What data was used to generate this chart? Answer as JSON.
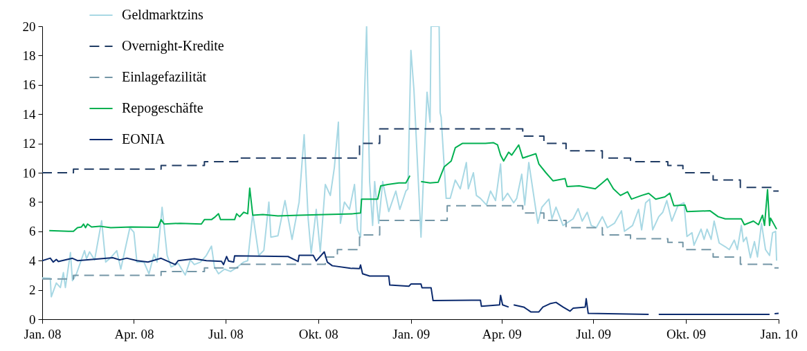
{
  "chart_data": {
    "type": "line",
    "legend": "top left",
    "xlim": [
      "2008-01-01",
      "2010-01-01"
    ],
    "ylim": [
      0,
      20
    ],
    "yticks": [
      0,
      2,
      4,
      6,
      8,
      10,
      12,
      14,
      16,
      18,
      20
    ],
    "xticks": [
      {
        "value": "2008-01-01",
        "label": "Jan. 08"
      },
      {
        "value": "2008-04-01",
        "label": "Apr. 08"
      },
      {
        "value": "2008-07-01",
        "label": "Jul. 08"
      },
      {
        "value": "2008-10-01",
        "label": "Okt. 08"
      },
      {
        "value": "2009-01-01",
        "label": "Jan. 09"
      },
      {
        "value": "2009-04-01",
        "label": "Apr. 09"
      },
      {
        "value": "2009-07-01",
        "label": "Jul. 09"
      },
      {
        "value": "2009-10-01",
        "label": "Okt. 09"
      },
      {
        "value": "2010-01-01",
        "label": "Jan. 10"
      }
    ],
    "series": [
      {
        "name": "Geldmarktzins",
        "line_style": "solid",
        "color": "#a8d8e4",
        "x": [
          "2008-01-01",
          "2008-01-09",
          "2008-01-10",
          "2008-01-15",
          "2008-01-19",
          "2008-01-22",
          "2008-01-24",
          "2008-01-29",
          "2008-01-31",
          "2008-02-04",
          "2008-02-12",
          "2008-02-14",
          "2008-02-17",
          "2008-02-22",
          "2008-02-29",
          "2008-03-04",
          "2008-03-09",
          "2008-03-15",
          "2008-03-19",
          "2008-03-28",
          "2008-04-01",
          "2008-04-04",
          "2008-04-11",
          "2008-04-16",
          "2008-04-21",
          "2008-04-24",
          "2008-04-29",
          "2008-05-04",
          "2008-05-08",
          "2008-05-15",
          "2008-05-22",
          "2008-05-27",
          "2008-05-31",
          "2008-06-06",
          "2008-06-12",
          "2008-06-17",
          "2008-06-20",
          "2008-06-24",
          "2008-06-30",
          "2008-07-06",
          "2008-07-13",
          "2008-07-19",
          "2008-07-23",
          "2008-07-28",
          "2008-08-03",
          "2008-08-08",
          "2008-08-13",
          "2008-08-15",
          "2008-08-22",
          "2008-08-29",
          "2008-09-05",
          "2008-09-12",
          "2008-09-17",
          "2008-09-21",
          "2008-09-24",
          "2008-09-29",
          "2008-10-03",
          "2008-10-08",
          "2008-10-13",
          "2008-10-17",
          "2008-10-21",
          "2008-10-23",
          "2008-10-27",
          "2008-11-01",
          "2008-11-06",
          "2008-11-09",
          "2008-11-12",
          "2008-11-14",
          "2008-11-18",
          "2008-11-21",
          "2008-11-24",
          "2008-11-26",
          "2008-11-30",
          "2008-12-04",
          "2008-12-10",
          "2008-12-17",
          "2008-12-21",
          "2008-12-27",
          "2008-12-29",
          "2009-01-01",
          "2009-01-04",
          "2009-01-11",
          "2009-01-17",
          "2009-01-20",
          "2009-01-21",
          "2009-01-29",
          "2009-01-30",
          "2009-01-31",
          "2009-02-05",
          "2009-02-09",
          "2009-02-14",
          "2009-02-19",
          "2009-02-25",
          "2009-02-27",
          "2009-03-04",
          "2009-03-07",
          "2009-03-11",
          "2009-03-17",
          "2009-03-21",
          "2009-03-26",
          "2009-03-31",
          "2009-04-02",
          "2009-04-07",
          "2009-04-13",
          "2009-04-16",
          "2009-04-21",
          "2009-04-24",
          "2009-04-28",
          "2009-05-07",
          "2009-05-11",
          "2009-05-18",
          "2009-05-21",
          "2009-05-25",
          "2009-06-01",
          "2009-06-11",
          "2009-06-16",
          "2009-06-20",
          "2009-06-25",
          "2009-06-29",
          "2009-07-04",
          "2009-07-10",
          "2009-07-15",
          "2009-07-22",
          "2009-07-29",
          "2009-08-01",
          "2009-08-09",
          "2009-08-15",
          "2009-08-18",
          "2009-08-22",
          "2009-08-26",
          "2009-08-29",
          "2009-09-04",
          "2009-09-08",
          "2009-09-12",
          "2009-09-17",
          "2009-09-23",
          "2009-09-29",
          "2009-10-02",
          "2009-10-07",
          "2009-10-09",
          "2009-10-16",
          "2009-10-19",
          "2009-10-22",
          "2009-10-26",
          "2009-10-29",
          "2009-11-03",
          "2009-11-09",
          "2009-11-13",
          "2009-11-18",
          "2009-11-21",
          "2009-11-25",
          "2009-11-27",
          "2009-11-30",
          "2009-12-04",
          "2009-12-08",
          "2009-12-11",
          "2009-12-15",
          "2009-12-19",
          "2009-12-23",
          "2009-12-26",
          "2009-12-29",
          "2009-12-30"
        ],
        "values": [
          2.82,
          2.79,
          1.53,
          2.47,
          2.16,
          3.18,
          2.16,
          4.55,
          2.63,
          3.1,
          4.68,
          4.13,
          4.6,
          4.05,
          6.72,
          3.9,
          4.2,
          4.68,
          3.42,
          6.25,
          5.94,
          3.9,
          3.9,
          3.1,
          4.44,
          3.9,
          7.64,
          4.36,
          3.57,
          3.81,
          3.02,
          4.05,
          3.73,
          3.9,
          4.36,
          4.99,
          3.57,
          3.1,
          3.42,
          3.26,
          3.57,
          3.9,
          4.0,
          7.2,
          4.35,
          4.7,
          8.0,
          5.6,
          5.7,
          8.1,
          5.45,
          8.0,
          12.6,
          6.85,
          4.5,
          7.5,
          4.6,
          9.2,
          8.45,
          10.35,
          13.45,
          6.55,
          8.0,
          7.5,
          9.2,
          6.1,
          5.6,
          10.95,
          20,
          9.4,
          6.4,
          9.4,
          6.55,
          9.4,
          7.35,
          8.75,
          7.5,
          8.75,
          8.9,
          18.35,
          15.65,
          5.6,
          15.5,
          13.45,
          20,
          20,
          14.1,
          13.8,
          8.25,
          8.25,
          9.5,
          8.9,
          10.7,
          8.9,
          10.0,
          8.45,
          8.25,
          7.8,
          8.75,
          8.1,
          10.6,
          8.1,
          8.6,
          7.95,
          8.25,
          9.9,
          7.8,
          10.7,
          6.55,
          7.65,
          8.2,
          6.85,
          7.65,
          6.4,
          6.85,
          7.55,
          6.7,
          7.3,
          6.4,
          6.25,
          7.0,
          6.25,
          6.55,
          7.4,
          6.0,
          6.4,
          7.5,
          6.1,
          7.95,
          8.2,
          6.1,
          7.0,
          7.3,
          8.1,
          6.7,
          7.75,
          7.95,
          5.65,
          5.9,
          5.05,
          6.15,
          5.45,
          6.15,
          5.45,
          6.7,
          5.2,
          4.95,
          4.75,
          5.4,
          4.75,
          6.4,
          5.3,
          5.6,
          4.2,
          5.3,
          4.25,
          6.55,
          4.75,
          4.35,
          5.9,
          6.0,
          4.0
        ]
      },
      {
        "name": "Overnight-Kredite",
        "type": "step",
        "line_style": "dashed",
        "color": "#1f3b63",
        "x": [
          "2008-01-01",
          "2008-02-01",
          "2008-04-28",
          "2008-06-10",
          "2008-07-13",
          "2008-11-11",
          "2008-12-01",
          "2009-04-22",
          "2009-05-13",
          "2009-06-04",
          "2009-07-10",
          "2009-08-07",
          "2009-09-13",
          "2009-09-28",
          "2009-10-28",
          "2009-11-24",
          "2009-12-25",
          "2010-01-01"
        ],
        "values": [
          10,
          10.25,
          10.5,
          10.75,
          11,
          12,
          13,
          12.5,
          12,
          11.5,
          11,
          10.75,
          10.5,
          10,
          9.5,
          9,
          8.75,
          8.75
        ]
      },
      {
        "name": "Einlagefazilität",
        "type": "step",
        "line_style": "dashed",
        "color": "#7496a6",
        "x": [
          "2008-01-01",
          "2008-02-01",
          "2008-04-28",
          "2008-06-10",
          "2008-07-13",
          "2008-10-08",
          "2008-10-20",
          "2008-11-11",
          "2008-12-01",
          "2009-02-06",
          "2009-04-22",
          "2009-05-13",
          "2009-06-04",
          "2009-07-10",
          "2009-08-07",
          "2009-09-13",
          "2009-09-28",
          "2009-10-28",
          "2009-11-24",
          "2009-12-25",
          "2010-01-01"
        ],
        "values": [
          2.75,
          3.0,
          3.25,
          3.5,
          3.75,
          4.25,
          4.75,
          5.75,
          6.75,
          7.75,
          7.25,
          6.75,
          6.25,
          5.75,
          5.5,
          5.25,
          4.75,
          4.25,
          3.75,
          3.5,
          3.5
        ]
      },
      {
        "name": "Repogeschäfte",
        "line_style": "solid",
        "color": "#00b050",
        "x": [
          "2008-01-08",
          "2008-01-27",
          "2008-02-01",
          "2008-02-05",
          "2008-02-09",
          "2008-02-11",
          "2008-02-13",
          "2008-02-15",
          "2008-02-19",
          "2008-02-27",
          "2008-03-09",
          "2008-03-29",
          "2008-04-25",
          "2008-04-28",
          "2008-05-01",
          "2008-05-17",
          "2008-06-07",
          "2008-06-10",
          "2008-06-17",
          "2008-06-20",
          "2008-06-24",
          "2008-06-26",
          "2008-07-10",
          "2008-07-12",
          "2008-07-15",
          "2008-07-19",
          "2008-07-23",
          "2008-07-25",
          "2008-07-28",
          "2008-08-07",
          "2008-08-22",
          "2008-09-12",
          "2008-10-08",
          "2008-11-05",
          "2008-11-12",
          "2008-11-13",
          "2008-11-29",
          "2008-12-02",
          "2008-12-09",
          "2008-12-20",
          "2008-12-27",
          "2008-12-31",
          "2009-01-05",
          "2009-01-11",
          "2009-01-20",
          "2009-01-28",
          "2009-02-03",
          "2009-02-10",
          "2009-02-14",
          "2009-02-21",
          "2009-03-16",
          "2009-03-24",
          "2009-03-28",
          "2009-03-31",
          "2009-04-03",
          "2009-04-08",
          "2009-04-11",
          "2009-04-14",
          "2009-04-18",
          "2009-04-22",
          "2009-05-05",
          "2009-05-08",
          "2009-05-15",
          "2009-05-22",
          "2009-06-03",
          "2009-06-05",
          "2009-06-17",
          "2009-07-03",
          "2009-07-10",
          "2009-07-15",
          "2009-07-21",
          "2009-07-28",
          "2009-08-04",
          "2009-08-08",
          "2009-08-18",
          "2009-08-25",
          "2009-09-01",
          "2009-09-10",
          "2009-09-15",
          "2009-09-19",
          "2009-09-30",
          "2009-10-02",
          "2009-10-25",
          "2009-11-02",
          "2009-11-09",
          "2009-11-25",
          "2009-11-28",
          "2009-12-07",
          "2009-12-12",
          "2009-12-16",
          "2009-12-18",
          "2009-12-21",
          "2009-12-23",
          "2009-12-24",
          "2009-12-30"
        ],
        "values": [
          6.05,
          6.0,
          6.0,
          6.25,
          6.3,
          6.5,
          6.25,
          6.5,
          6.3,
          6.35,
          6.25,
          6.3,
          6.27,
          6.8,
          6.5,
          6.55,
          6.5,
          6.8,
          6.8,
          6.95,
          7.2,
          6.8,
          6.8,
          7.2,
          7.0,
          7.3,
          7.2,
          8.95,
          7.1,
          7.15,
          7.05,
          7.1,
          7.15,
          7.2,
          7.25,
          8.2,
          8.2,
          9.1,
          9.2,
          9.3,
          9.3,
          9.8,
          null,
          9.4,
          9.3,
          9.35,
          10.4,
          10.8,
          11.7,
          12.0,
          12.0,
          12.05,
          11.9,
          11.2,
          10.8,
          11.4,
          11.2,
          11.5,
          11.9,
          11.0,
          11.3,
          10.6,
          10.0,
          9.45,
          9.6,
          9.06,
          9.1,
          8.9,
          9.3,
          9.6,
          8.9,
          8.45,
          8.7,
          8.2,
          8.45,
          8.6,
          8.2,
          8.35,
          8.6,
          7.75,
          7.8,
          7.35,
          7.4,
          7.0,
          6.85,
          6.85,
          6.45,
          6.7,
          6.45,
          7.1,
          6.4,
          8.85,
          6.4,
          6.9,
          6.15
        ]
      },
      {
        "name": "EONIA",
        "line_style": "solid",
        "color": "#0b2a6e",
        "x": [
          "2008-01-01",
          "2008-01-09",
          "2008-01-12",
          "2008-01-15",
          "2008-01-17",
          "2008-01-31",
          "2008-02-05",
          "2008-03-11",
          "2008-03-18",
          "2008-03-25",
          "2008-04-04",
          "2008-04-15",
          "2008-04-28",
          "2008-05-12",
          "2008-05-15",
          "2008-05-31",
          "2008-06-12",
          "2008-06-27",
          "2008-06-29",
          "2008-07-02",
          "2008-07-04",
          "2008-07-09",
          "2008-07-10",
          "2008-09-01",
          "2008-09-11",
          "2008-09-12",
          "2008-09-26",
          "2008-09-29",
          "2008-10-07",
          "2008-10-10",
          "2008-10-15",
          "2008-11-02",
          "2008-11-11",
          "2008-11-12",
          "2008-11-14",
          "2008-11-21",
          "2008-12-10",
          "2008-12-11",
          "2008-12-30",
          "2009-01-01",
          "2009-01-11",
          "2009-01-12",
          "2009-01-21",
          "2009-01-23",
          "2009-03-02",
          "2009-03-11",
          "2009-03-12",
          "2009-03-30",
          "2009-03-31",
          "2009-04-02",
          "2009-04-08",
          "2009-04-10",
          "2009-04-13",
          "2009-04-23",
          "2009-04-30",
          "2009-05-08",
          "2009-05-12",
          "2009-05-19",
          "2009-05-25",
          "2009-06-01",
          "2009-06-08",
          "2009-06-11",
          "2009-06-23",
          "2009-06-24",
          "2009-06-26",
          "2009-08-25",
          "2009-09-01",
          "2009-09-04",
          "2009-12-23",
          "2009-12-25",
          "2009-12-28",
          "2010-01-01"
        ],
        "values": [
          4.0,
          4.17,
          3.9,
          4.08,
          3.94,
          4.16,
          4.0,
          4.2,
          4.05,
          4.17,
          4.0,
          3.9,
          4.16,
          3.73,
          4.0,
          4.13,
          4.0,
          3.95,
          3.73,
          4.28,
          3.97,
          3.9,
          4.33,
          4.28,
          3.94,
          4.36,
          4.36,
          3.98,
          4.6,
          3.9,
          3.65,
          3.48,
          3.45,
          3.7,
          3.1,
          2.95,
          2.95,
          2.33,
          2.25,
          2.4,
          2.4,
          2.15,
          2.15,
          1.27,
          1.3,
          1.3,
          0.88,
          0.98,
          1.63,
          0.98,
          0.83,
          null,
          0.98,
          0.83,
          0.5,
          0.5,
          0.83,
          1.06,
          1.15,
          0.83,
          0.55,
          0.75,
          0.83,
          1.4,
          0.4,
          0.33,
          null,
          0.33,
          0.33,
          null,
          0.38,
          0.4
        ]
      }
    ]
  }
}
